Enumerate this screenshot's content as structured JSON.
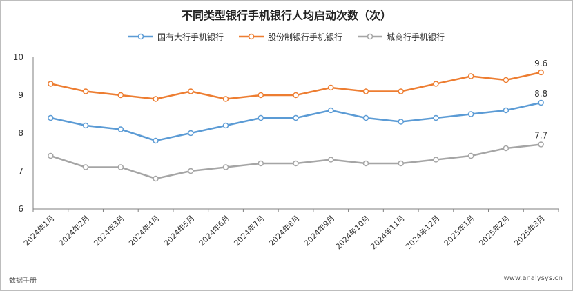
{
  "chart_data": {
    "type": "line",
    "title": "不同类型银行手机银行人均启动次数（次）",
    "categories": [
      "2024年1月",
      "2024年2月",
      "2024年3月",
      "2024年4月",
      "2024年5月",
      "2024年6月",
      "2024年7月",
      "2024年8月",
      "2024年9月",
      "2024年10月",
      "2024年11月",
      "2024年12月",
      "2025年1月",
      "2025年2月",
      "2025年3月"
    ],
    "ylim": [
      6,
      10
    ],
    "yticks": [
      6,
      7,
      8,
      9,
      10
    ],
    "grid": false,
    "legend_position": "top",
    "series": [
      {
        "name": "国有大行手机银行",
        "color": "#5b9bd5",
        "values": [
          8.4,
          8.2,
          8.1,
          7.8,
          8.0,
          8.2,
          8.4,
          8.4,
          8.6,
          8.4,
          8.3,
          8.4,
          8.5,
          8.6,
          8.8
        ],
        "end_label": "8.8"
      },
      {
        "name": "股份制银行手机银行",
        "color": "#ed7d31",
        "values": [
          9.3,
          9.1,
          9.0,
          8.9,
          9.1,
          8.9,
          9.0,
          9.0,
          9.2,
          9.1,
          9.1,
          9.3,
          9.5,
          9.4,
          9.6
        ],
        "end_label": "9.6"
      },
      {
        "name": "城商行手机银行",
        "color": "#a5a5a5",
        "values": [
          7.4,
          7.1,
          7.1,
          6.8,
          7.0,
          7.1,
          7.2,
          7.2,
          7.3,
          7.2,
          7.2,
          7.3,
          7.4,
          7.6,
          7.7
        ],
        "end_label": "7.7"
      }
    ]
  },
  "footer": {
    "source": "数据手册",
    "website": "www.analysys.cn"
  }
}
